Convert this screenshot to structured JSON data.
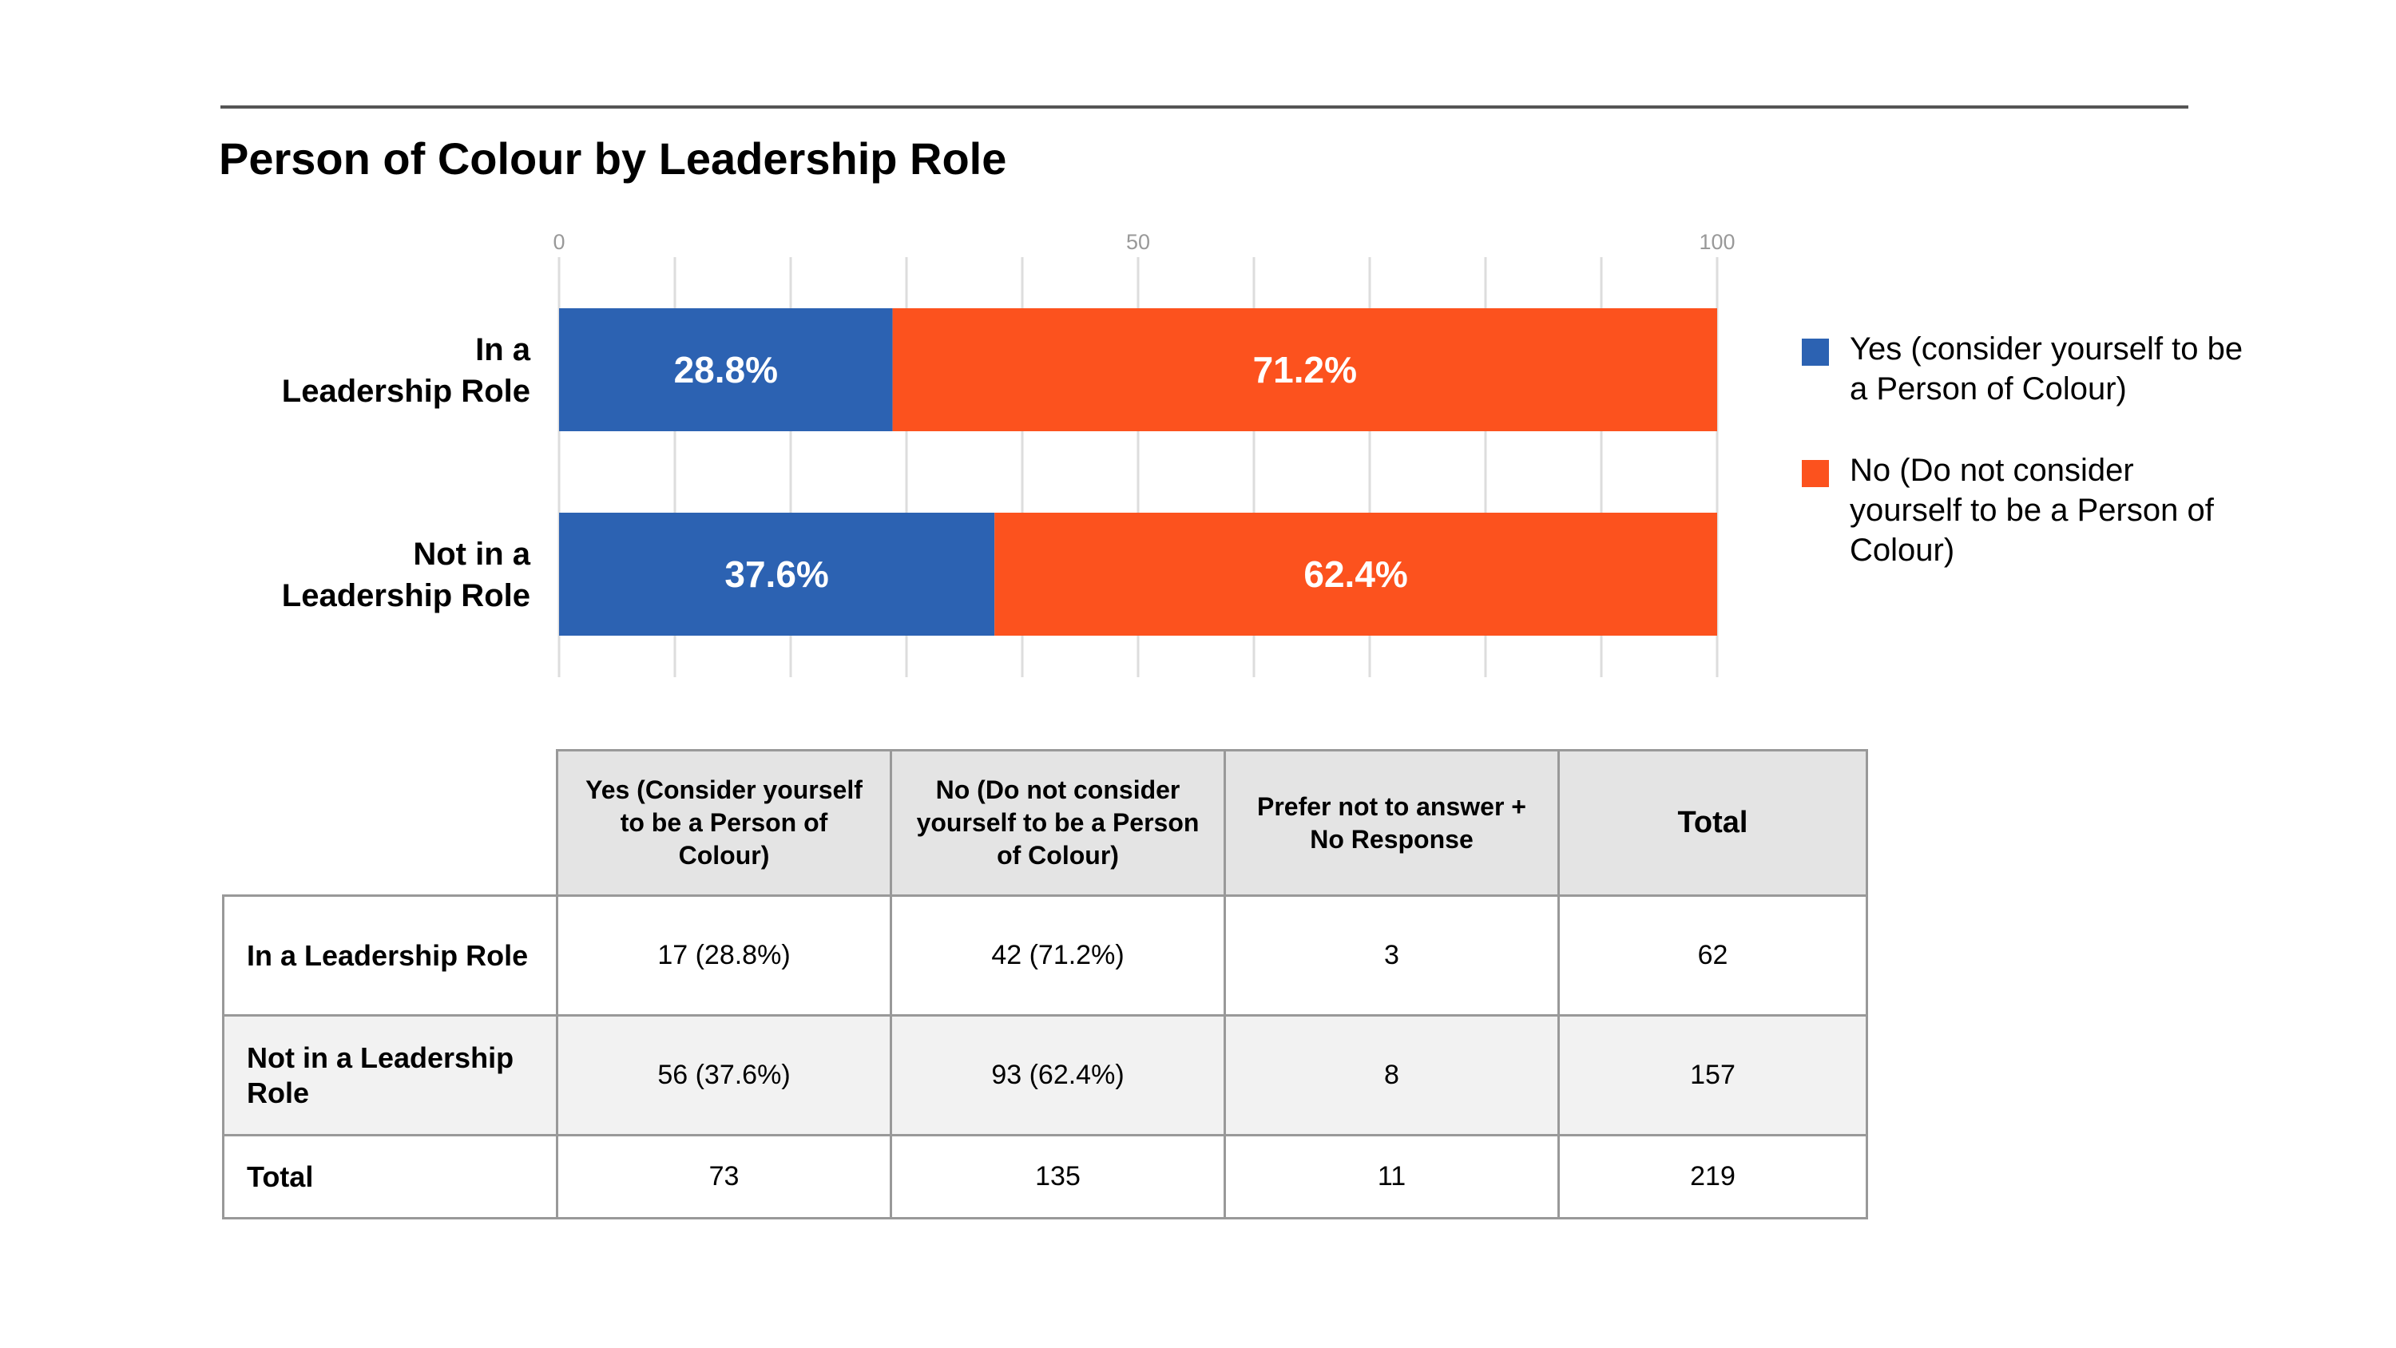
{
  "title": "Person of Colour by Leadership Role",
  "chart_data": {
    "type": "bar",
    "orientation": "horizontal",
    "stacked": true,
    "categories": [
      "In a\nLeadership Role",
      "Not in a\nLeadership Role"
    ],
    "series": [
      {
        "name": "Yes (consider yourself to be a Person of Colour)",
        "color": "#2c62b2",
        "values": [
          28.8,
          37.6
        ],
        "labels": [
          "28.8%",
          "37.6%"
        ]
      },
      {
        "name": "No (Do not consider yourself to be a Person of Colour)",
        "color": "#fc521e",
        "values": [
          71.2,
          62.4
        ],
        "labels": [
          "71.2%",
          "62.4%"
        ]
      }
    ],
    "xlim": [
      0,
      100
    ],
    "x_ticks": [
      0,
      50,
      100
    ],
    "x_tick_labels": [
      "0",
      "50",
      "100"
    ],
    "gridline_interval": 10,
    "grid": true,
    "axis_position": "top",
    "legend_position": "right"
  },
  "table": {
    "headers": [
      "",
      "Yes (Consider yourself to be a Person of Colour)",
      "No (Do not consider yourself to be a Person of Colour)",
      "Prefer not to answer + No Response",
      "Total"
    ],
    "rows": [
      {
        "label": "In a Leadership Role",
        "cells": [
          "17 (28.8%)",
          "42 (71.2%)",
          "3",
          "62"
        ]
      },
      {
        "label": "Not in a Leadership Role",
        "cells": [
          "56 (37.6%)",
          "93 (62.4%)",
          "8",
          "157"
        ]
      },
      {
        "label": "Total",
        "cells": [
          "73",
          "135",
          "11",
          "219"
        ]
      }
    ]
  }
}
